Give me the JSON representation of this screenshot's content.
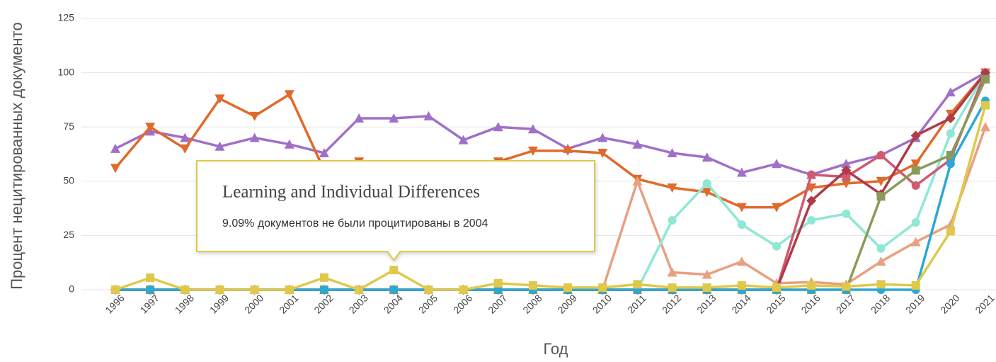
{
  "chart_data": {
    "type": "line",
    "y_label": "Процент нецитированных документо",
    "x_label": "Год",
    "categories": [
      "1996",
      "1997",
      "1998",
      "1999",
      "2000",
      "2001",
      "2002",
      "2003",
      "2004",
      "2005",
      "2006",
      "2007",
      "2008",
      "2009",
      "2010",
      "2011",
      "2012",
      "2013",
      "2014",
      "2015",
      "2016",
      "2017",
      "2018",
      "2019",
      "2020",
      "2021"
    ],
    "ylim": [
      0,
      125
    ],
    "yticks": [
      0,
      25,
      50,
      75,
      100,
      125
    ],
    "grid": true,
    "series": [
      {
        "color": "#a070c8",
        "marker": "triangle-up",
        "values": [
          65,
          73,
          70,
          66,
          70,
          67,
          63,
          79,
          79,
          80,
          69,
          75,
          74,
          65,
          70,
          67,
          63,
          61,
          54,
          58,
          53,
          58,
          62,
          70,
          91,
          100
        ]
      },
      {
        "color": "#e06a2b",
        "marker": "triangle-down",
        "values": [
          56,
          75,
          65,
          88,
          80,
          90,
          55,
          59,
          57,
          55,
          56,
          59,
          64,
          64,
          63,
          51,
          47,
          45,
          38,
          38,
          47,
          49,
          50,
          58,
          81,
          100
        ]
      },
      {
        "color": "#e8a080",
        "marker": "triangle-up",
        "values": [
          0,
          0,
          0,
          0,
          0,
          0,
          0,
          0,
          0,
          0,
          0,
          0,
          0,
          0,
          0,
          50,
          8,
          7,
          13,
          3,
          3.5,
          2.5,
          13,
          22,
          30,
          75
        ]
      },
      {
        "color": "#8ee8d4",
        "marker": "circle",
        "values": [
          0,
          0,
          0,
          0,
          0,
          0,
          0,
          0,
          0,
          0,
          0,
          0,
          0,
          0,
          0,
          0,
          32,
          49,
          30,
          20,
          32,
          35,
          19,
          31,
          72,
          100
        ]
      },
      {
        "color": "#d05a70",
        "marker": "circle",
        "values": [
          0,
          0,
          0,
          0,
          0,
          0,
          0,
          0,
          0,
          0,
          0,
          0,
          0,
          0,
          0,
          0,
          0,
          0,
          0,
          0,
          53,
          52,
          62,
          48,
          60,
          100
        ]
      },
      {
        "color": "#b03a48",
        "marker": "diamond",
        "values": [
          0,
          0,
          0,
          0,
          0,
          0,
          0,
          0,
          0,
          0,
          0,
          0,
          0,
          0,
          0,
          0,
          0,
          0,
          0,
          0,
          41,
          55,
          44,
          71,
          79,
          100
        ]
      },
      {
        "color": "#8a9a5a",
        "marker": "square",
        "values": [
          0,
          0,
          0,
          0,
          0,
          0,
          0,
          0,
          0,
          0,
          0,
          0,
          0,
          0,
          0,
          0,
          0,
          0,
          0,
          0,
          0,
          0,
          43,
          55,
          62,
          97
        ]
      },
      {
        "color": "#2aa8d8",
        "marker": "circle",
        "values": [
          0,
          0,
          0,
          0,
          0,
          0,
          0,
          0,
          0,
          0,
          0,
          0,
          0,
          0,
          0,
          0,
          0,
          0,
          0,
          0,
          0,
          0,
          0,
          0,
          58,
          87
        ]
      },
      {
        "name": "Learning and Individual Differences",
        "color": "#e0c84a",
        "marker": "square",
        "values": [
          0,
          5.5,
          0,
          0,
          0,
          0,
          5.6,
          0,
          9.09,
          0,
          0,
          3,
          2,
          1,
          1,
          2.5,
          1,
          1,
          2,
          1,
          2,
          1.5,
          2.5,
          2,
          27,
          85
        ]
      }
    ],
    "tooltip": {
      "series": 8,
      "index": 8,
      "text": "9.09% документов не были процитированы в 2004"
    }
  }
}
